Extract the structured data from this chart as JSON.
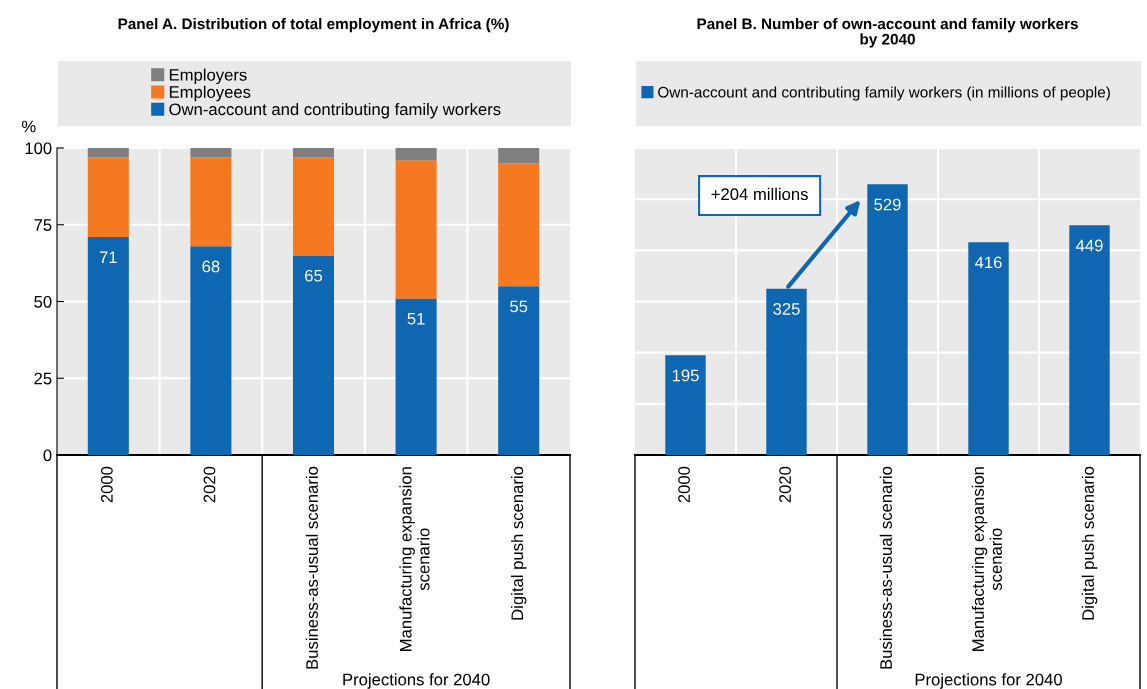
{
  "chart_data": [
    {
      "type": "bar",
      "title": "Panel A. Distribution of total employment in Africa (%)",
      "ylabel": "%",
      "xlabel": "Projections for 2040",
      "categories": [
        "2000",
        "2020",
        "Business-as-usual scenario",
        "Manufacturing expansion\nscenario",
        "Digital push scenario"
      ],
      "stacked": true,
      "series": [
        {
          "name": "Own-account and contributing family workers",
          "color": "#0e67b0",
          "values": [
            71,
            68,
            65,
            51,
            55
          ],
          "value_labels": [
            "71",
            "68",
            "65",
            "51",
            "55"
          ]
        },
        {
          "name": "Employees",
          "color": "#f47920",
          "values": [
            26,
            29,
            32,
            45,
            40
          ]
        },
        {
          "name": "Employers",
          "color": "#7f7f7f",
          "values": [
            3,
            3,
            3,
            4,
            5
          ]
        }
      ],
      "ylim": [
        0,
        100
      ],
      "yticks": [
        0,
        25,
        50,
        75,
        100
      ],
      "grid": true,
      "legend": "top"
    },
    {
      "type": "bar",
      "title": "Panel B. Number of own-account and family workers\nby 2040",
      "xlabel": "Projections for 2040",
      "categories": [
        "2000",
        "2020",
        "Business-as-usual scenario",
        "Manufacturing expansion\nscenario",
        "Digital push scenario"
      ],
      "series": [
        {
          "name": "Own-account and contributing family workers (in millions of people)",
          "color": "#0e67b0",
          "values": [
            195,
            325,
            529,
            416,
            449
          ]
        }
      ],
      "data_labels": true,
      "annotations": [
        "+204 millions"
      ],
      "ylim": [
        0,
        600
      ],
      "yticks": [
        {
          "value": 0,
          "label": null
        },
        {
          "value": 100,
          "label": null
        },
        {
          "value": 200,
          "label": null
        },
        {
          "value": 300,
          "label": null
        },
        {
          "value": 400,
          "label": null
        },
        {
          "value": 500,
          "label": null
        },
        {
          "value": 600,
          "label": null
        }
      ],
      "tick_labels": "x",
      "grid": true,
      "legend": "top"
    }
  ]
}
